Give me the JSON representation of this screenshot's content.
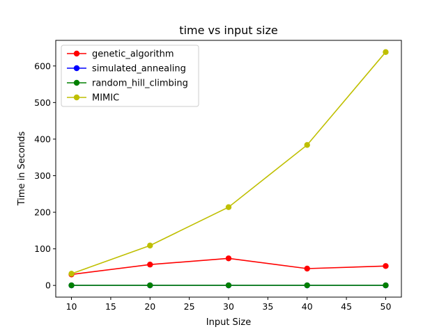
{
  "chart_data": {
    "type": "line",
    "title": "time vs input size",
    "xlabel": "Input Size",
    "ylabel": "Time in Seconds",
    "x": [
      10,
      20,
      30,
      40,
      50
    ],
    "xlim": [
      8,
      52
    ],
    "ylim": [
      -32,
      670
    ],
    "x_ticks": [
      10,
      15,
      20,
      25,
      30,
      35,
      40,
      45,
      50
    ],
    "y_ticks": [
      0,
      100,
      200,
      300,
      400,
      500,
      600
    ],
    "grid": false,
    "legend_position": "top-left",
    "series": [
      {
        "name": "genetic_algorithm",
        "color": "#ff0000",
        "values": [
          30,
          57,
          74,
          46,
          53
        ]
      },
      {
        "name": "simulated_annealing",
        "color": "#0000ff",
        "values": [
          0.1,
          0.1,
          0.1,
          0.1,
          0.1
        ]
      },
      {
        "name": "random_hill_climbing",
        "color": "#008000",
        "values": [
          0.2,
          0.2,
          0.2,
          0.2,
          0.2
        ]
      },
      {
        "name": "MIMIC",
        "color": "#bfbf00",
        "values": [
          32,
          109,
          214,
          384,
          638
        ]
      }
    ]
  }
}
